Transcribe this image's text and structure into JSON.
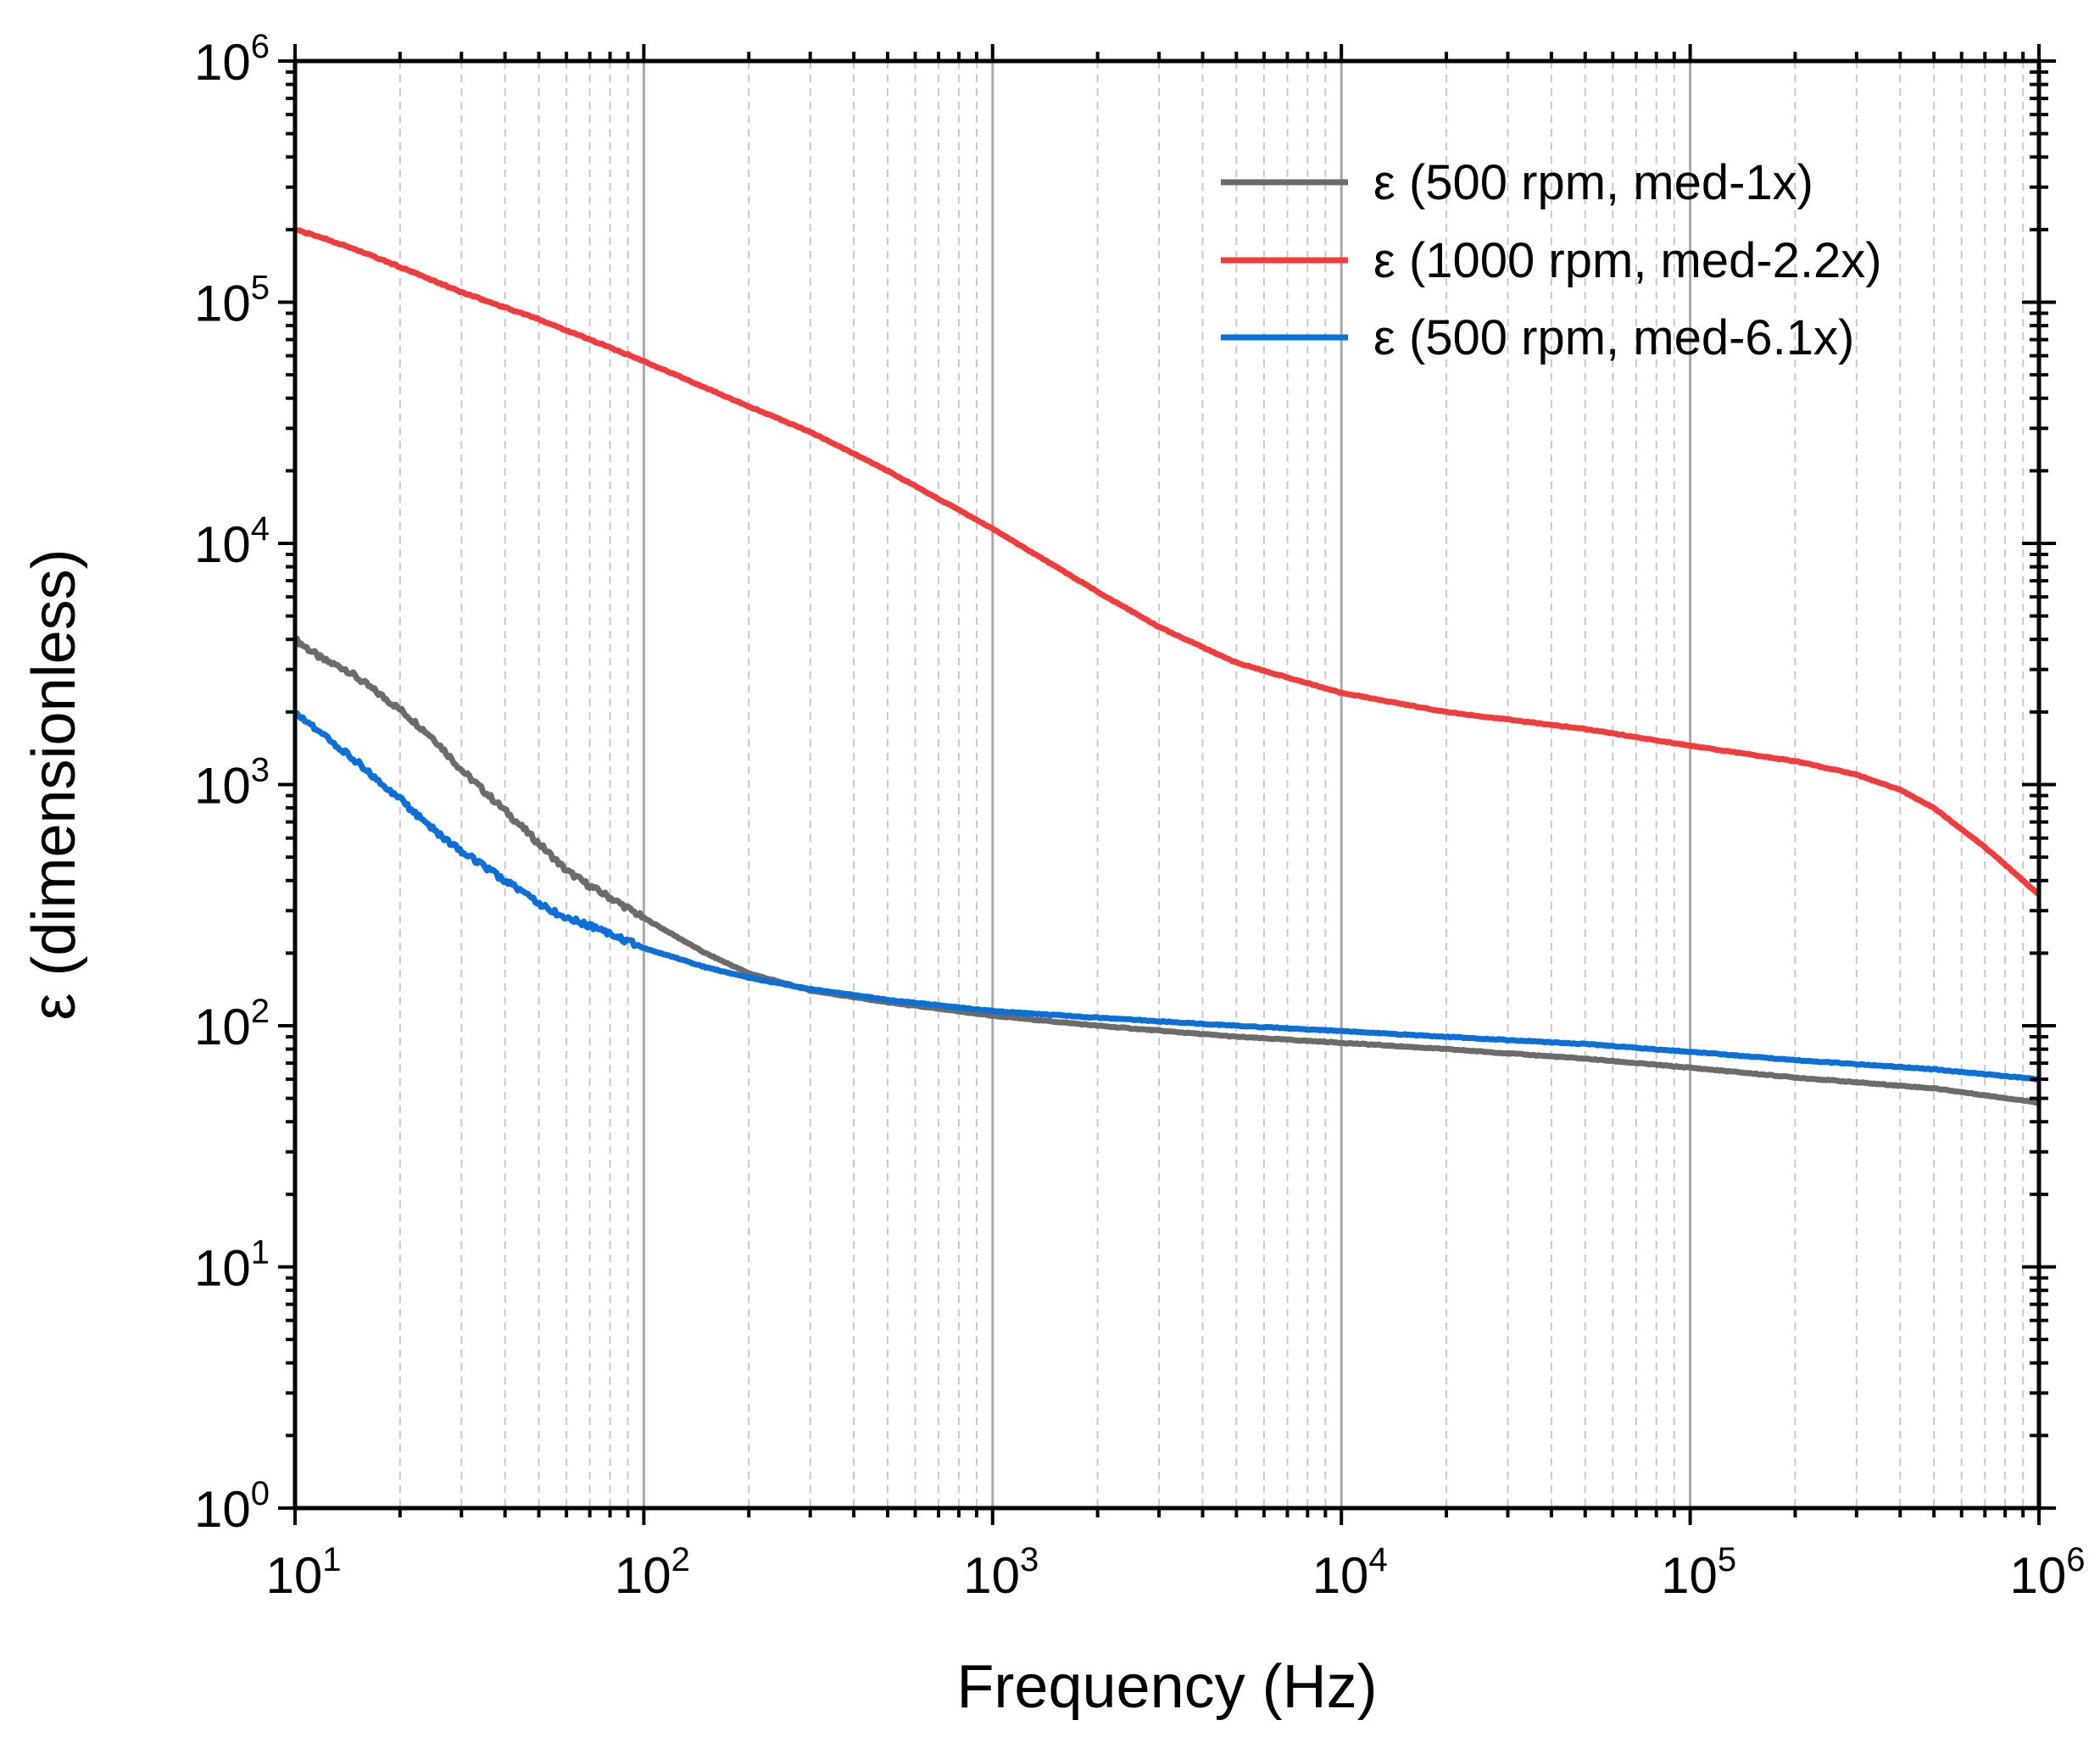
{
  "chart_data": {
    "type": "line",
    "title": "",
    "xlabel": "Frequency (Hz)",
    "ylabel": "ε (dimensionless)",
    "xscale": "log",
    "yscale": "log",
    "xlim": [
      10,
      1000000
    ],
    "ylim": [
      1,
      1000000
    ],
    "x_ticks": [
      {
        "value": 10,
        "base": "10",
        "exp": "1"
      },
      {
        "value": 100,
        "base": "10",
        "exp": "2"
      },
      {
        "value": 1000,
        "base": "10",
        "exp": "3"
      },
      {
        "value": 10000,
        "base": "10",
        "exp": "4"
      },
      {
        "value": 100000,
        "base": "10",
        "exp": "5"
      },
      {
        "value": 1000000,
        "base": "10",
        "exp": "6"
      }
    ],
    "y_ticks": [
      {
        "value": 1,
        "base": "10",
        "exp": "0"
      },
      {
        "value": 10,
        "base": "10",
        "exp": "1"
      },
      {
        "value": 100,
        "base": "10",
        "exp": "2"
      },
      {
        "value": 1000,
        "base": "10",
        "exp": "3"
      },
      {
        "value": 10000,
        "base": "10",
        "exp": "4"
      },
      {
        "value": 100000,
        "base": "10",
        "exp": "5"
      },
      {
        "value": 1000000,
        "base": "10",
        "exp": "6"
      }
    ],
    "grid": "vertical major and minor",
    "legend_position": "top-right",
    "series": [
      {
        "name": "ε (500 rpm, med-1x)",
        "color": "#6b6b6b",
        "x": [
          10,
          12,
          14,
          16,
          20,
          25,
          30,
          40,
          50,
          60,
          70,
          80,
          100,
          150,
          200,
          300,
          500,
          1000,
          2000,
          5000,
          10000,
          20000,
          50000,
          100000,
          200000,
          500000,
          1000000
        ],
        "y": [
          4000,
          3300,
          3000,
          2600,
          2050,
          1550,
          1150,
          780,
          570,
          440,
          380,
          340,
          280,
          200,
          165,
          140,
          125,
          110,
          100,
          90,
          85,
          80,
          73,
          67,
          61,
          55,
          48
        ]
      },
      {
        "name": "ε (1000 rpm, med-2.2x)",
        "color": "#f23c3c",
        "x": [
          10,
          12,
          15,
          20,
          30,
          50,
          100,
          200,
          300,
          500,
          1000,
          2000,
          3000,
          5000,
          10000,
          20000,
          50000,
          100000,
          200000,
          300000,
          400000,
          500000,
          700000,
          1000000
        ],
        "y": [
          200000,
          185000,
          165000,
          140000,
          110000,
          85000,
          57000,
          37000,
          29000,
          20000,
          11500,
          6300,
          4500,
          3200,
          2400,
          2000,
          1700,
          1450,
          1250,
          1100,
          950,
          800,
          550,
          350
        ]
      },
      {
        "name": "ε (500 rpm, med-6.1x)",
        "color": "#0a6fd6",
        "x": [
          10,
          12,
          15,
          20,
          25,
          30,
          40,
          50,
          60,
          70,
          80,
          100,
          150,
          200,
          300,
          500,
          1000,
          2000,
          5000,
          10000,
          20000,
          50000,
          100000,
          200000,
          500000,
          1000000
        ],
        "y": [
          2000,
          1600,
          1250,
          870,
          650,
          530,
          400,
          320,
          280,
          260,
          240,
          210,
          175,
          158,
          142,
          128,
          115,
          108,
          100,
          95,
          90,
          84,
          78,
          72,
          66,
          60
        ]
      }
    ]
  }
}
